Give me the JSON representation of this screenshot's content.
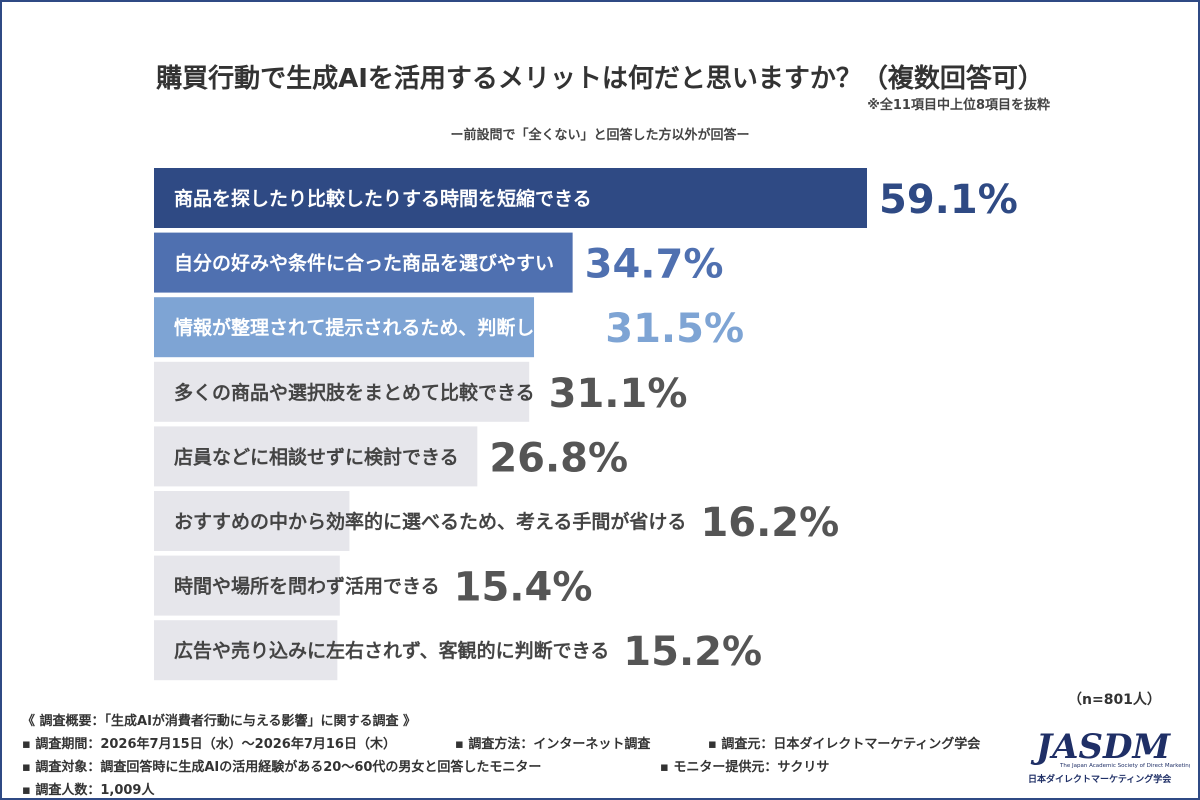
{
  "title": "購買行動で生成AIを活用するメリットは何だと思いますか？（複数回答可）",
  "note": "※全11項目中上位8項目を抜粋",
  "subtitle": "ー前設問で「全くない」と回答した方以外が回答ー",
  "chart_data": {
    "type": "bar",
    "orientation": "horizontal",
    "categories": [
      "商品を探したり比較したりする時間を短縮できる",
      "自分の好みや条件に合った商品を選びやすい",
      "情報が整理されて提示されるため、判断しやすい",
      "多くの商品や選択肢をまとめて比較できる",
      "店員などに相談せずに検討できる",
      "おすすめの中から効率的に選べるため、考える手間が省ける",
      "時間や場所を問わず活用できる",
      "広告や売り込みに左右されず、客観的に判断できる"
    ],
    "values": [
      59.1,
      34.7,
      31.5,
      31.1,
      26.8,
      16.2,
      15.4,
      15.2
    ],
    "value_labels": [
      "59.1%",
      "34.7%",
      "31.5%",
      "31.1%",
      "26.8%",
      "16.2%",
      "15.4%",
      "15.2%"
    ],
    "xlim": [
      0,
      100
    ],
    "colors": [
      "#2f4a84",
      "#4f70b0",
      "#7ea4d4",
      "#e6e6eb",
      "#e6e6eb",
      "#e6e6eb",
      "#e6e6eb",
      "#e6e6eb"
    ],
    "label_colors": [
      "#ffffff",
      "#ffffff",
      "#ffffff",
      "#444444",
      "#444444",
      "#444444",
      "#444444",
      "#444444"
    ],
    "value_colors": [
      "#2f4a84",
      "#4f70b0",
      "#7ea4d4",
      "#555555",
      "#555555",
      "#555555",
      "#555555",
      "#555555"
    ]
  },
  "sample": "（n=801人）",
  "footer": {
    "line1": "《 調査概要：「生成AIが消費者行動に与える影響」に関する調査 》",
    "period": "▪ 調査期間：2026年7月15日（水）〜2026年7月16日（木）",
    "method": "▪ 調査方法：インターネット調査",
    "source": "▪ 調査元：日本ダイレクトマーケティング学会",
    "target": "▪ 調査対象：調査回答時に生成AIの活用経験がある20〜60代の男女と回答したモニター",
    "provider": "▪ モニター提供元：サクリサ",
    "count": "▪ 調査人数：1,009人"
  },
  "logo": {
    "text": "JASDM",
    "tagline": "The Japan Academic Society of Direct Marketing",
    "caption": "日本ダイレクトマーケティング学会",
    "color": "#1f2f66"
  }
}
